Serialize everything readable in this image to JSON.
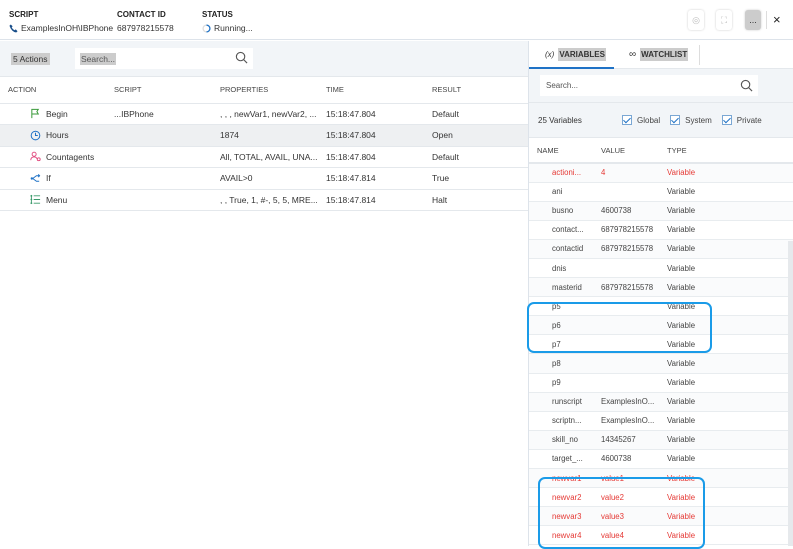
{
  "header": {
    "script_label": "SCRIPT",
    "script_value": "ExamplesInOH\\IBPhone",
    "contact_label": "CONTACT ID",
    "contact_value": "687978215578",
    "status_label": "STATUS",
    "status_value": "Running...",
    "more_label": "...",
    "close_label": "×"
  },
  "actions": {
    "count": "5 Actions",
    "search_placeholder": "Search...",
    "columns": [
      "ACTION",
      "SCRIPT",
      "PROPERTIES",
      "TIME",
      "RESULT"
    ],
    "rows": [
      {
        "icon": "flag-icon",
        "color": "#3a9a3a",
        "action": "Begin",
        "script": "...IBPhone",
        "properties": ", , , newVar1, newVar2, ...",
        "time": "15:18:47.804",
        "result": "Default"
      },
      {
        "icon": "clock-icon",
        "color": "#1f72c6",
        "action": "Hours",
        "script": "",
        "properties": "1874",
        "time": "15:18:47.804",
        "result": "Open"
      },
      {
        "icon": "agents-icon",
        "color": "#e0457b",
        "action": "Countagents",
        "script": "",
        "properties": "All, TOTAL, AVAIL, UNA...",
        "time": "15:18:47.804",
        "result": "Default"
      },
      {
        "icon": "branch-icon",
        "color": "#1f72c6",
        "action": "If",
        "script": "",
        "properties": "AVAIL>0",
        "time": "15:18:47.814",
        "result": "True"
      },
      {
        "icon": "menu-list-icon",
        "color": "#3a9a6a",
        "action": "Menu",
        "script": "",
        "properties": ", , True, 1, #-, 5, 5, MRE...",
        "time": "15:18:47.814",
        "result": "Halt"
      }
    ]
  },
  "panel": {
    "tab_variables_icon": "(x)",
    "tab_variables": "VARIABLES",
    "tab_watchlist": "WATCHLIST",
    "search_placeholder": "Search...",
    "count": "25 Variables",
    "filters": [
      {
        "label": "Global",
        "checked": true
      },
      {
        "label": "System",
        "checked": true
      },
      {
        "label": "Private",
        "checked": true
      }
    ],
    "columns": [
      "NAME",
      "VALUE",
      "TYPE"
    ],
    "rows": [
      {
        "name": "actioni...",
        "value": "4",
        "type": "Variable",
        "changed": true
      },
      {
        "name": "ani",
        "value": "",
        "type": "Variable"
      },
      {
        "name": "busno",
        "value": "4600738",
        "type": "Variable"
      },
      {
        "name": "contact...",
        "value": "687978215578",
        "type": "Variable"
      },
      {
        "name": "contactid",
        "value": "687978215578",
        "type": "Variable"
      },
      {
        "name": "dnis",
        "value": "",
        "type": "Variable"
      },
      {
        "name": "masterid",
        "value": "687978215578",
        "type": "Variable"
      },
      {
        "name": "p5",
        "value": "",
        "type": "Variable"
      },
      {
        "name": "p6",
        "value": "",
        "type": "Variable"
      },
      {
        "name": "p7",
        "value": "",
        "type": "Variable"
      },
      {
        "name": "p8",
        "value": "",
        "type": "Variable"
      },
      {
        "name": "p9",
        "value": "",
        "type": "Variable"
      },
      {
        "name": "runscript",
        "value": "ExamplesInO...",
        "type": "Variable"
      },
      {
        "name": "scriptn...",
        "value": "ExamplesInO...",
        "type": "Variable"
      },
      {
        "name": "skill_no",
        "value": "14345267",
        "type": "Variable"
      },
      {
        "name": "target_...",
        "value": "4600738",
        "type": "Variable"
      },
      {
        "name": "newvar1",
        "value": "value1",
        "type": "Variable",
        "changed": true
      },
      {
        "name": "newvar2",
        "value": "value2",
        "type": "Variable",
        "changed": true
      },
      {
        "name": "newvar3",
        "value": "value3",
        "type": "Variable",
        "changed": true
      },
      {
        "name": "newvar4",
        "value": "value4",
        "type": "Variable",
        "changed": true
      }
    ]
  },
  "colors": {
    "accent": "#1f72c6",
    "changed": "#e53935",
    "highlight": "#1a9be8"
  }
}
